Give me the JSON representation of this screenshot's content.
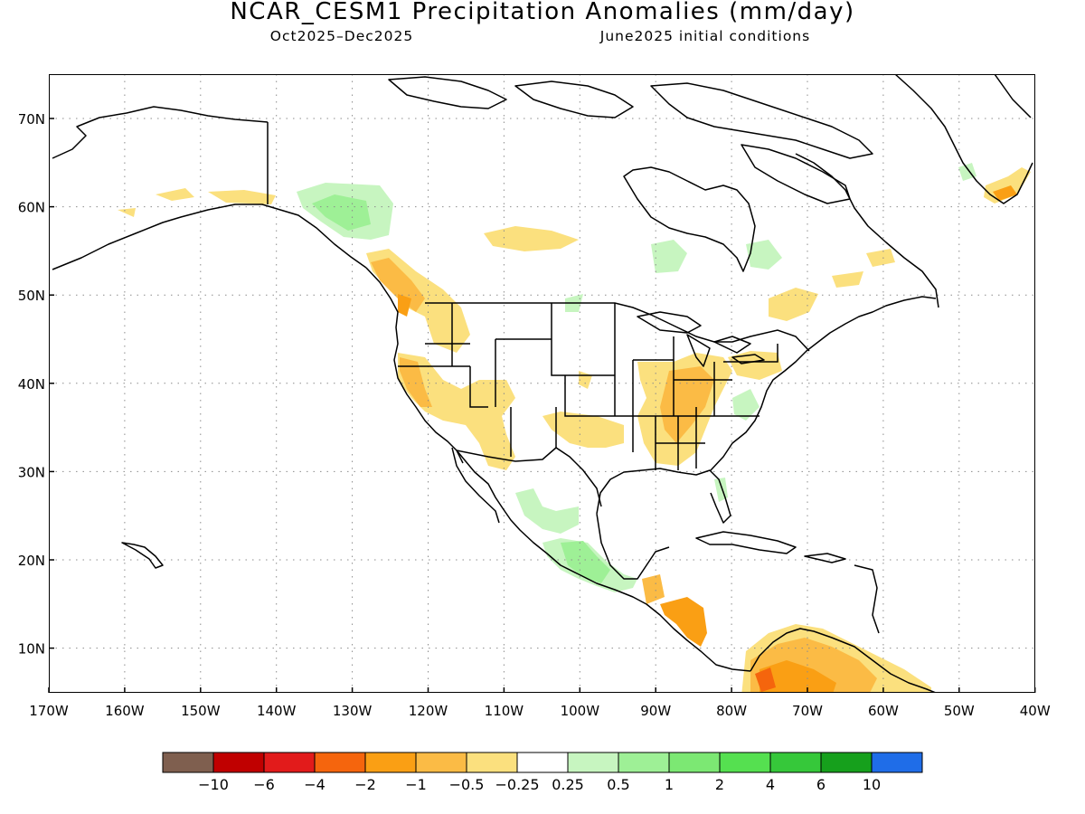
{
  "title": "NCAR_CESM1 Precipitation Anomalies (mm/day)",
  "subtitle_left": "Oct2025–Dec2025",
  "subtitle_right": "June2025 initial conditions",
  "map": {
    "lat_ticks": [
      "70N",
      "60N",
      "50N",
      "40N",
      "30N",
      "20N",
      "10N"
    ],
    "lon_ticks": [
      "170W",
      "160W",
      "150W",
      "140W",
      "130W",
      "120W",
      "110W",
      "100W",
      "90W",
      "80W",
      "70W",
      "60W",
      "50W",
      "40W"
    ]
  },
  "colorbar": {
    "colors": [
      "#7f5f4f",
      "#c00000",
      "#e21b1b",
      "#f5650d",
      "#fa9f14",
      "#fbbb45",
      "#fbe07e",
      "#ffffff",
      "#c7f5c0",
      "#9ef096",
      "#7ce873",
      "#55e050",
      "#36c83a",
      "#16a01c",
      "#1f6de8"
    ],
    "labels": [
      "−10",
      "−6",
      "−4",
      "−2",
      "−1",
      "−0.5",
      "−0.25",
      "0.25",
      "0.5",
      "1",
      "2",
      "4",
      "6",
      "10"
    ]
  },
  "colors": {
    "dry_light": "#fbe07e",
    "dry": "#fbbb45",
    "dry_medium": "#fa9f14",
    "dry_strong": "#f5650d",
    "wet_light": "#c7f5c0",
    "wet": "#9ef096",
    "wet_medium": "#7ce873"
  }
}
